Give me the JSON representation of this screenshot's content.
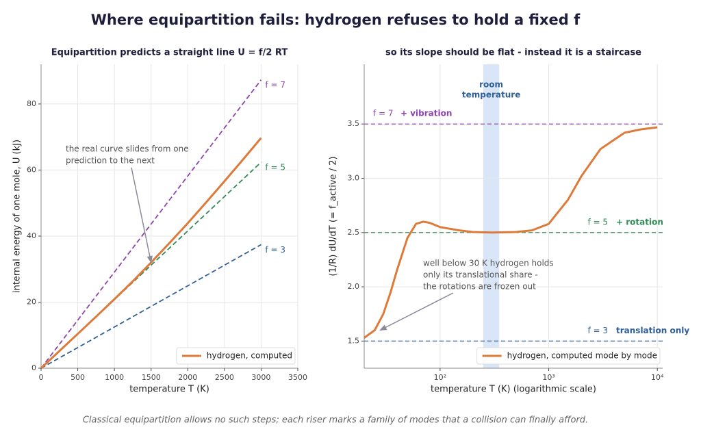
{
  "title": "Where equipartition fails: hydrogen refuses to hold a fixed f",
  "caption": "Classical equipartition allows no such steps; each riser marks a family of modes that a collision can finally afford.",
  "chart_data": [
    {
      "type": "line",
      "title": "Equipartition predicts a straight line U = f/2 RT",
      "xlabel": "temperature  T  (K)",
      "ylabel": "internal energy of one mole,  U  (kJ)",
      "x": [
        0,
        250,
        500,
        750,
        1000,
        1250,
        1500,
        1750,
        2000,
        2250,
        2500,
        2750,
        3000
      ],
      "xlim": [
        0,
        3500
      ],
      "xticks": [
        0,
        500,
        1000,
        1500,
        2000,
        2500,
        3000,
        3500
      ],
      "ylim": [
        0,
        92
      ],
      "yticks": [
        0,
        20,
        40,
        60,
        80
      ],
      "grid": true,
      "legend": "lower right",
      "series": [
        {
          "name": "f = 7",
          "color": "#8e44ad",
          "dashed": true,
          "values": [
            0,
            7.27,
            14.55,
            21.82,
            29.1,
            36.37,
            43.65,
            50.92,
            58.2,
            65.47,
            72.74,
            80.02,
            87.29
          ]
        },
        {
          "name": "f = 5",
          "color": "#2e8b57",
          "dashed": true,
          "values": [
            0,
            5.2,
            10.39,
            15.59,
            20.79,
            25.98,
            31.18,
            36.37,
            41.57,
            46.77,
            51.96,
            57.16,
            62.36
          ]
        },
        {
          "name": "f = 3",
          "color": "#2f5f98",
          "dashed": true,
          "values": [
            0,
            3.12,
            6.24,
            9.35,
            12.47,
            15.59,
            18.71,
            21.83,
            24.94,
            28.06,
            31.18,
            34.3,
            37.41
          ]
        },
        {
          "name": "hydrogen, computed",
          "color": "#dd7a3a",
          "values": [
            0,
            5.2,
            10.4,
            15.6,
            20.9,
            26.3,
            32.0,
            37.9,
            43.9,
            50.2,
            56.6,
            63.1,
            69.7
          ]
        }
      ],
      "annotation": {
        "text": [
          "the real curve slides from one",
          "prediction to the next"
        ],
        "arrow_to": [
          1500,
          32
        ]
      }
    },
    {
      "type": "line",
      "xscale": "log",
      "title": "so its slope should be flat - instead it is a staircase",
      "xlabel": "temperature  T  (K)   (logarithmic scale)",
      "ylabel": "(1/R) dU/dT    (= f_active / 2)",
      "x": [
        20,
        25,
        30,
        35,
        40,
        50,
        60,
        70,
        80,
        100,
        150,
        200,
        300,
        500,
        700,
        1000,
        1500,
        2000,
        3000,
        5000,
        7000,
        10000
      ],
      "xlim": [
        20,
        11200
      ],
      "xticks": [
        {
          "value": 100,
          "label": "10²"
        },
        {
          "value": 1000,
          "label": "10³"
        },
        {
          "value": 10000,
          "label": "10⁴"
        }
      ],
      "ylim": [
        1.25,
        4.05
      ],
      "yticks": [
        1.5,
        {
          "value": 2,
          "label": "2.0"
        },
        2.5,
        {
          "value": 3,
          "label": "3.0"
        },
        3.5
      ],
      "grid": true,
      "legend": "lower right",
      "series": [
        {
          "name": "hydrogen, computed mode by mode",
          "color": "#dd7a3a",
          "values": [
            1.53,
            1.6,
            1.75,
            1.95,
            2.15,
            2.45,
            2.58,
            2.6,
            2.59,
            2.55,
            2.52,
            2.505,
            2.5,
            2.505,
            2.52,
            2.58,
            2.8,
            3.02,
            3.27,
            3.42,
            3.45,
            3.47
          ]
        }
      ],
      "references": [
        {
          "value": 3.5,
          "label": "f = 7",
          "note": "+ vibration",
          "color": "#8e44ad",
          "label_position": "left"
        },
        {
          "value": 2.5,
          "label": "f = 5",
          "note": "+ rotation",
          "color": "#2e8b57",
          "label_position": "right"
        },
        {
          "value": 1.5,
          "label": "f = 3",
          "note": "translation only",
          "color": "#2f5f98",
          "label_position": "right"
        }
      ],
      "band": {
        "x": [
          250,
          350
        ],
        "label": [
          "room",
          "temperature"
        ],
        "color": "#c9dcf3"
      },
      "annotation": {
        "text": [
          "well below 30 K hydrogen holds",
          "only its translational share -",
          "the rotations are frozen out"
        ],
        "arrow_to": [
          28,
          1.6
        ]
      }
    }
  ]
}
